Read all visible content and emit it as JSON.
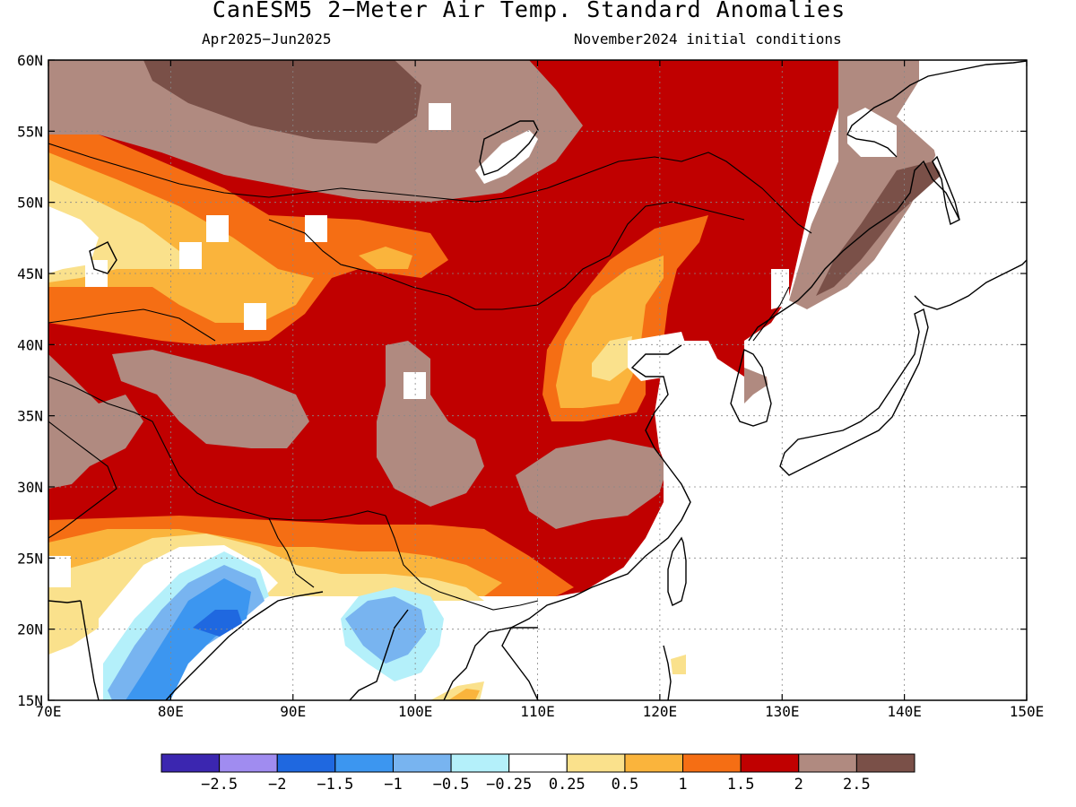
{
  "title": "CanESM5 2−Meter Air Temp. Standard Anomalies",
  "period": "Apr2025−Jun2025",
  "init": "November2024 initial conditions",
  "map": {
    "lon_range": [
      70,
      150
    ],
    "lat_range": [
      15,
      60
    ],
    "lon_ticks": [
      "70E",
      "80E",
      "90E",
      "100E",
      "110E",
      "120E",
      "130E",
      "140E",
      "150E"
    ],
    "lat_ticks": [
      "15N",
      "20N",
      "25N",
      "30N",
      "35N",
      "40N",
      "45N",
      "50N",
      "55N",
      "60N"
    ]
  },
  "colorbar": {
    "colors": [
      "#3b26b0",
      "#a08cf0",
      "#1f68e0",
      "#3c96f0",
      "#78b4f0",
      "#b4f0fa",
      "#ffffff",
      "#fae18c",
      "#fab43c",
      "#f56e14",
      "#c00000",
      "#b08a80",
      "#7a5048"
    ],
    "labels": [
      "−2.5",
      "−2",
      "−1.5",
      "−1",
      "−0.5",
      "−0.25",
      "0.25",
      "0.5",
      "1",
      "1.5",
      "2",
      "2.5"
    ]
  },
  "legend_icons": {
    "coastline": "coastline-icon",
    "border": "border-icon"
  }
}
